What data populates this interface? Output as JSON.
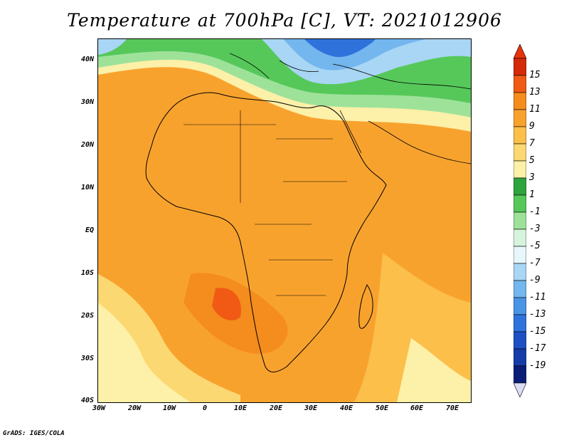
{
  "title": "Temperature at 700hPa [C], VT: 2021012906",
  "credit": "GrADS: IGES/COLA",
  "y_ticks": [
    "40N",
    "30N",
    "20N",
    "10N",
    "EQ",
    "10S",
    "20S",
    "30S",
    "40S"
  ],
  "x_ticks": [
    "30W",
    "20W",
    "10W",
    "0",
    "10E",
    "20E",
    "30E",
    "40E",
    "50E",
    "60E",
    "70E"
  ],
  "colorbar": {
    "labels": [
      "15",
      "13",
      "11",
      "9",
      "7",
      "5",
      "3",
      "1",
      "-1",
      "-3",
      "-5",
      "-7",
      "-9",
      "-11",
      "-13",
      "-15",
      "-17",
      "-19"
    ],
    "colors": [
      "#d42a0a",
      "#f05a14",
      "#f58c1e",
      "#f8a22e",
      "#fbbf4a",
      "#fcd872",
      "#fdf0a8",
      "#2fa43c",
      "#56c85a",
      "#9ee29a",
      "#d6f4dc",
      "#e6f6fb",
      "#a8d6f4",
      "#74b6ee",
      "#4a94e6",
      "#2f72dc",
      "#1e50c4",
      "#153ca8",
      "#0a1e78"
    ],
    "over_color": "#e8320a",
    "under_color": "#dcdcf4"
  }
}
